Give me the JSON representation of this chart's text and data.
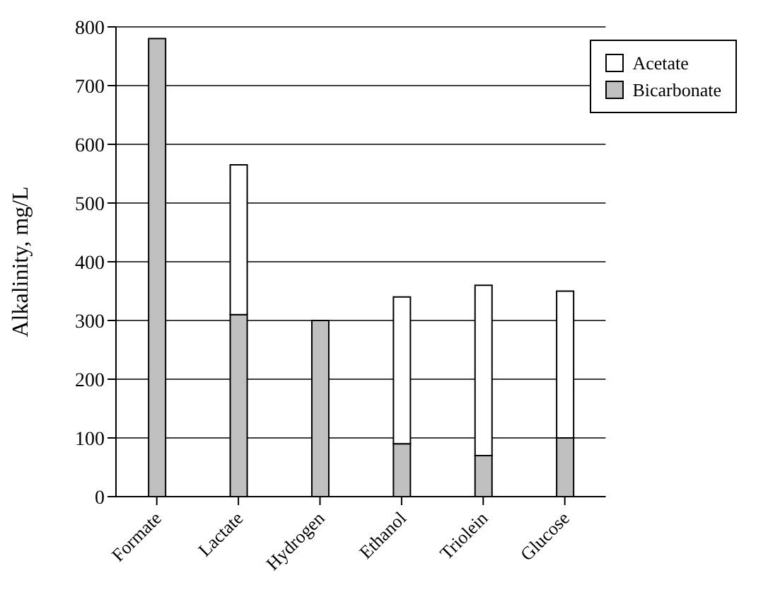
{
  "chart_data": {
    "type": "bar",
    "stacked": true,
    "ylabel": "Alkalinity, mg/L",
    "categories": [
      "Formate",
      "Lactate",
      "Hydrogen",
      "Ethanol",
      "Triolein",
      "Glucose"
    ],
    "series": [
      {
        "name": "Bicarbonate",
        "color": "#c0c0c0",
        "values": [
          780,
          310,
          300,
          90,
          70,
          100
        ]
      },
      {
        "name": "Acetate",
        "color": "#ffffff",
        "values": [
          null,
          255,
          null,
          250,
          290,
          250
        ]
      }
    ],
    "ylim": [
      0,
      800
    ],
    "yticks": [
      0,
      100,
      200,
      300,
      400,
      500,
      600,
      700,
      800
    ],
    "grid": "y",
    "legend": "top right"
  }
}
